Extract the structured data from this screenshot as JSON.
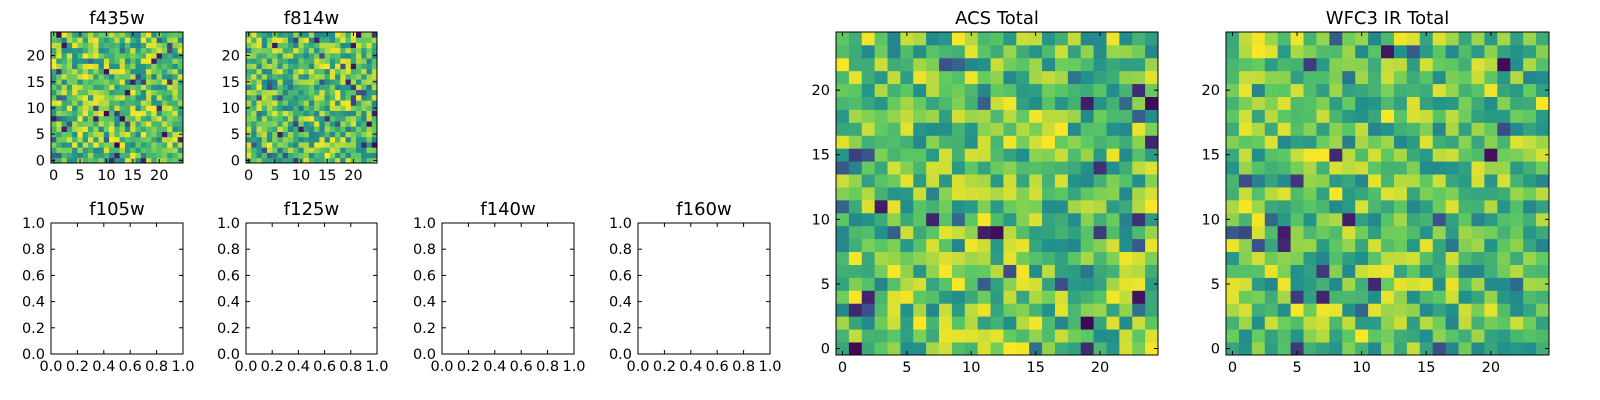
{
  "chart_data": [
    {
      "id": "f435w",
      "type": "heatmap",
      "title": "f435w",
      "grid": "25x25",
      "xlim": [
        -0.5,
        24.5
      ],
      "ylim": [
        -0.5,
        24.5
      ],
      "xticks": [
        0,
        5,
        10,
        15,
        20
      ],
      "yticks": [
        0,
        5,
        10,
        15,
        20
      ],
      "colormap": "viridis",
      "seed": 11
    },
    {
      "id": "f814w",
      "type": "heatmap",
      "title": "f814w",
      "grid": "25x25",
      "xlim": [
        -0.5,
        24.5
      ],
      "ylim": [
        -0.5,
        24.5
      ],
      "xticks": [
        0,
        5,
        10,
        15,
        20
      ],
      "yticks": [
        0,
        5,
        10,
        15,
        20
      ],
      "colormap": "viridis",
      "seed": 23
    },
    {
      "id": "acs-total",
      "type": "heatmap",
      "title": "ACS Total",
      "grid": "25x25",
      "xlim": [
        -0.5,
        24.5
      ],
      "ylim": [
        -0.5,
        24.5
      ],
      "xticks": [
        0,
        5,
        10,
        15,
        20
      ],
      "yticks": [
        0,
        5,
        10,
        15,
        20
      ],
      "colormap": "viridis",
      "seed": 37
    },
    {
      "id": "wfc3-ir-total",
      "type": "heatmap",
      "title": "WFC3 IR Total",
      "grid": "25x25",
      "xlim": [
        -0.5,
        24.5
      ],
      "ylim": [
        -0.5,
        24.5
      ],
      "xticks": [
        0,
        5,
        10,
        15,
        20
      ],
      "yticks": [
        0,
        5,
        10,
        15,
        20
      ],
      "colormap": "viridis",
      "seed": 53
    },
    {
      "id": "f105w",
      "type": "empty",
      "title": "f105w",
      "xlim": [
        0,
        1
      ],
      "ylim": [
        0,
        1
      ],
      "xtick_labels": [
        "0.0",
        "0.2",
        "0.4",
        "0.6",
        "0.8",
        "1.0"
      ],
      "ytick_labels": [
        "0.0",
        "0.2",
        "0.4",
        "0.6",
        "0.8",
        "1.0"
      ]
    },
    {
      "id": "f125w",
      "type": "empty",
      "title": "f125w",
      "xlim": [
        0,
        1
      ],
      "ylim": [
        0,
        1
      ],
      "xtick_labels": [
        "0.0",
        "0.2",
        "0.4",
        "0.6",
        "0.8",
        "1.0"
      ],
      "ytick_labels": [
        "0.0",
        "0.2",
        "0.4",
        "0.6",
        "0.8",
        "1.0"
      ]
    },
    {
      "id": "f140w",
      "type": "empty",
      "title": "f140w",
      "xlim": [
        0,
        1
      ],
      "ylim": [
        0,
        1
      ],
      "xtick_labels": [
        "0.0",
        "0.2",
        "0.4",
        "0.6",
        "0.8",
        "1.0"
      ],
      "ytick_labels": [
        "0.0",
        "0.2",
        "0.4",
        "0.6",
        "0.8",
        "1.0"
      ]
    },
    {
      "id": "f160w",
      "type": "empty",
      "title": "f160w",
      "xlim": [
        0,
        1
      ],
      "ylim": [
        0,
        1
      ],
      "xtick_labels": [
        "0.0",
        "0.2",
        "0.4",
        "0.6",
        "0.8",
        "1.0"
      ],
      "ytick_labels": [
        "0.0",
        "0.2",
        "0.4",
        "0.6",
        "0.8",
        "1.0"
      ]
    }
  ],
  "colors": {
    "viridis": [
      "#440154",
      "#3b528b",
      "#21918c",
      "#5ec962",
      "#fde725"
    ],
    "axis": "#000000",
    "background": "#ffffff"
  }
}
